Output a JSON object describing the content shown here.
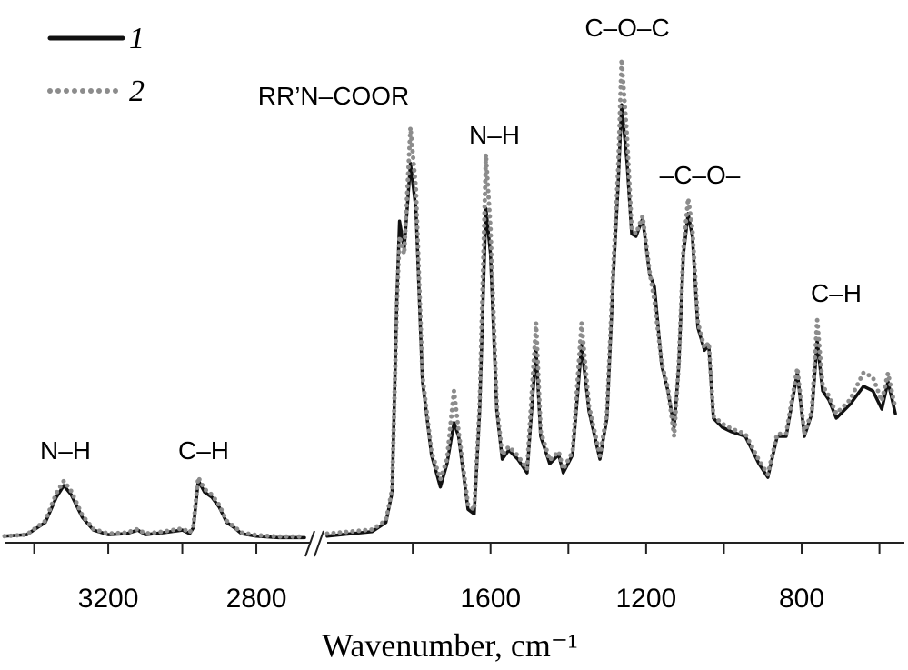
{
  "chart_data": {
    "type": "line",
    "x_label": "Wavenumber, cm⁻¹",
    "ylim": [
      0,
      100
    ],
    "x_segments": [
      {
        "xlim": [
          3480,
          2670
        ],
        "xticks": [
          3200,
          2800
        ],
        "xminor": [
          3400,
          3000
        ]
      },
      {
        "xlim": [
          2020,
          550
        ],
        "xticks": [
          1600,
          1200,
          800
        ],
        "xminor": [
          1800,
          1400,
          1000,
          600
        ]
      }
    ],
    "x": [
      3480,
      3420,
      3370,
      3340,
      3320,
      3300,
      3270,
      3240,
      3200,
      3150,
      3120,
      3100,
      3050,
      3000,
      2980,
      2970,
      2957,
      2940,
      2920,
      2900,
      2880,
      2860,
      2840,
      2800,
      2740,
      2670,
      2020,
      1904,
      1869,
      1853,
      1841,
      1834,
      1822,
      1806,
      1792,
      1775,
      1752,
      1729,
      1712,
      1694,
      1682,
      1658,
      1642,
      1628,
      1612,
      1600,
      1584,
      1570,
      1553,
      1530,
      1506,
      1483,
      1471,
      1448,
      1425,
      1413,
      1389,
      1366,
      1347,
      1319,
      1301,
      1284,
      1272,
      1263,
      1249,
      1237,
      1226,
      1209,
      1191,
      1179,
      1160,
      1144,
      1128,
      1116,
      1104,
      1092,
      1081,
      1067,
      1050,
      1039,
      1027,
      1004,
      980,
      945,
      910,
      887,
      863,
      840,
      811,
      793,
      774,
      760,
      746,
      730,
      711,
      676,
      641,
      617,
      594,
      578,
      559
    ],
    "series": [
      {
        "name": "1",
        "color": "#111111",
        "style": "solid",
        "values": [
          1.3,
          1.6,
          4,
          9,
          11.3,
          9.5,
          5,
          2.5,
          1.6,
          1.8,
          2.5,
          1.6,
          2,
          2.5,
          1.8,
          3,
          12.3,
          10,
          9,
          7,
          4,
          3,
          1.8,
          1.3,
          1,
          1,
          1.3,
          2.2,
          4,
          10,
          48,
          63.5,
          58,
          74.9,
          66,
          32,
          17.4,
          11,
          15.6,
          23.7,
          21,
          6.6,
          5.7,
          26,
          66,
          57,
          26,
          16.5,
          18.3,
          16.5,
          13.8,
          38,
          21,
          15.6,
          17.4,
          13.8,
          17.4,
          39,
          26,
          16.5,
          24.6,
          53,
          71,
          86.5,
          75,
          61,
          60.5,
          64,
          53,
          50.6,
          35,
          30,
          22.8,
          35,
          57,
          65,
          60.5,
          42.5,
          38,
          39,
          24.6,
          22.8,
          21.9,
          21,
          15.6,
          12.9,
          21,
          21,
          33.6,
          21,
          25.5,
          40,
          30,
          28.2,
          24.6,
          27.3,
          30.9,
          30,
          26.4,
          31.8,
          25.5
        ]
      },
      {
        "name": "2",
        "color": "#8c8c8c",
        "style": "dotted",
        "values": [
          1.3,
          1.6,
          4.3,
          9.8,
          12.2,
          10.2,
          5.4,
          2.7,
          1.8,
          2,
          2.7,
          1.8,
          2.2,
          2.8,
          2,
          3.4,
          12.9,
          10.6,
          9.5,
          7.4,
          4.3,
          3.2,
          2,
          1.5,
          1.2,
          1.2,
          1.8,
          2.6,
          4.4,
          10.5,
          47,
          60.5,
          57,
          82,
          70,
          33,
          18,
          12.5,
          16.5,
          30,
          22,
          7.5,
          6.5,
          27,
          76.7,
          62,
          27,
          17.3,
          19,
          17.2,
          14.5,
          43.4,
          22,
          16.3,
          18,
          14.5,
          18,
          43.4,
          27,
          17.2,
          25.5,
          55,
          74,
          95.5,
          80,
          62,
          61,
          64.5,
          53.5,
          47.9,
          35.5,
          30.5,
          21,
          35.5,
          58,
          68,
          62,
          43.5,
          38.5,
          39.5,
          25,
          23.5,
          22.5,
          21.5,
          16.3,
          13.5,
          21.5,
          21.5,
          34.5,
          21.5,
          26,
          44,
          31,
          29,
          25.5,
          28.2,
          33.6,
          32.7,
          28,
          33.5,
          26.5
        ]
      }
    ],
    "annotations": [
      "N–H",
      "C–H",
      "RR’N–COOR",
      "N–H",
      "C–O–C",
      "–C–O–",
      "C–H"
    ]
  }
}
